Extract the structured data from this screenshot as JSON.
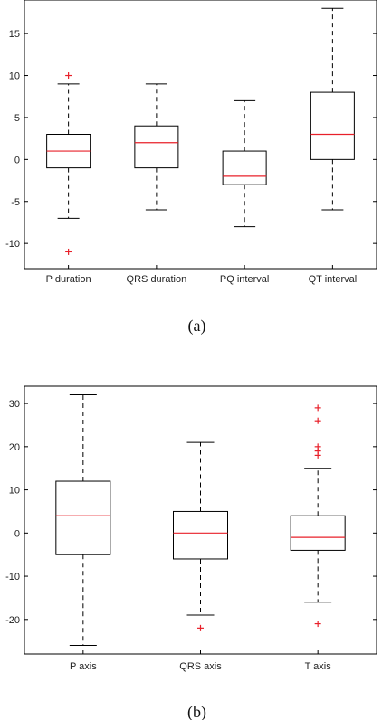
{
  "chart_data": [
    {
      "type": "box",
      "panel_label": "(a)",
      "categories": [
        "P duration",
        "QRS duration",
        "PQ interval",
        "QT interval"
      ],
      "ylim": [
        -13,
        19
      ],
      "yticks": [
        -10,
        -5,
        0,
        5,
        10,
        15
      ],
      "boxes": [
        {
          "whisker_low": -7,
          "q1": -1,
          "median": 1,
          "q3": 3,
          "whisker_high": 9,
          "outliers": [
            10,
            -11
          ]
        },
        {
          "whisker_low": -6,
          "q1": -1,
          "median": 2,
          "q3": 4,
          "whisker_high": 9,
          "outliers": []
        },
        {
          "whisker_low": -8,
          "q1": -3,
          "median": -2,
          "q3": 1,
          "whisker_high": 7,
          "outliers": []
        },
        {
          "whisker_low": -6,
          "q1": 0,
          "median": 3,
          "q3": 8,
          "whisker_high": 18,
          "outliers": []
        }
      ],
      "box_color": "#000000",
      "median_color": "#e8202a",
      "outlier_color": "#e8202a",
      "outlier_marker": "+",
      "grid": false
    },
    {
      "type": "box",
      "panel_label": "(b)",
      "categories": [
        "P axis",
        "QRS axis",
        "T axis"
      ],
      "ylim": [
        -28,
        34
      ],
      "yticks": [
        -20,
        -10,
        0,
        10,
        20,
        30
      ],
      "boxes": [
        {
          "whisker_low": -26,
          "q1": -5,
          "median": 4,
          "q3": 12,
          "whisker_high": 32,
          "outliers": []
        },
        {
          "whisker_low": -19,
          "q1": -6,
          "median": 0,
          "q3": 5,
          "whisker_high": 21,
          "outliers": [
            -22
          ]
        },
        {
          "whisker_low": -16,
          "q1": -4,
          "median": -1,
          "q3": 4,
          "whisker_high": 15,
          "outliers": [
            29,
            26,
            20,
            19,
            18,
            -21
          ]
        }
      ],
      "box_color": "#000000",
      "median_color": "#e8202a",
      "outlier_color": "#e8202a",
      "outlier_marker": "+",
      "grid": false
    }
  ]
}
